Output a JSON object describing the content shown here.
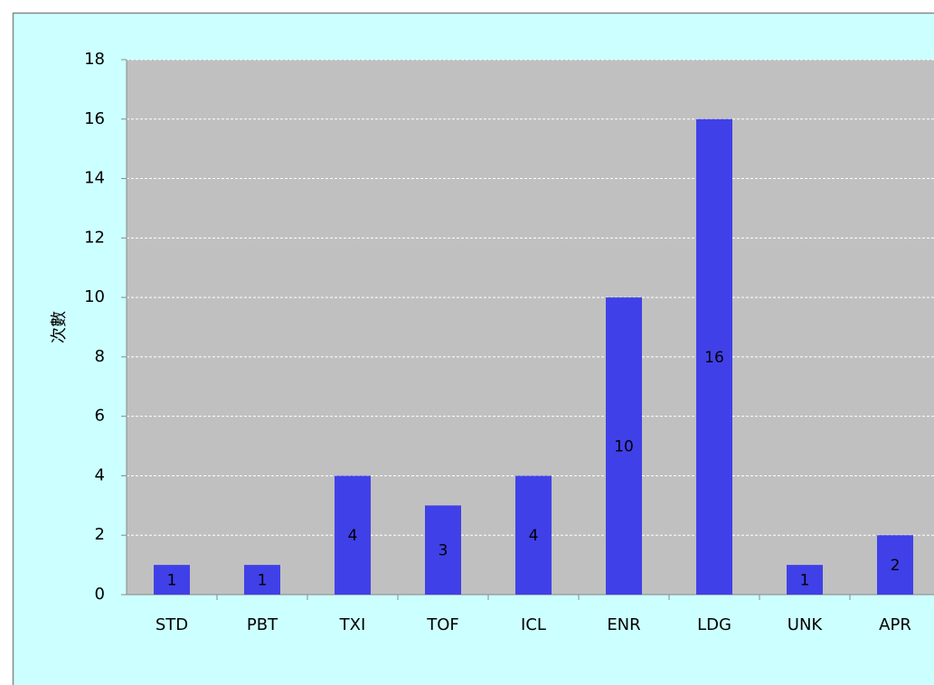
{
  "chart_data": {
    "type": "bar",
    "y_label": "次數",
    "categories": [
      "STD",
      "PBT",
      "TXI",
      "TOF",
      "ICL",
      "ENR",
      "LDG",
      "UNK",
      "APR"
    ],
    "values": [
      1,
      1,
      4,
      3,
      4,
      10,
      16,
      1,
      2
    ],
    "color": "#4040e8",
    "ylim": [
      0,
      18
    ],
    "yticks": [
      0,
      2,
      4,
      6,
      8,
      10,
      12,
      14,
      16,
      18
    ],
    "grid": true
  }
}
